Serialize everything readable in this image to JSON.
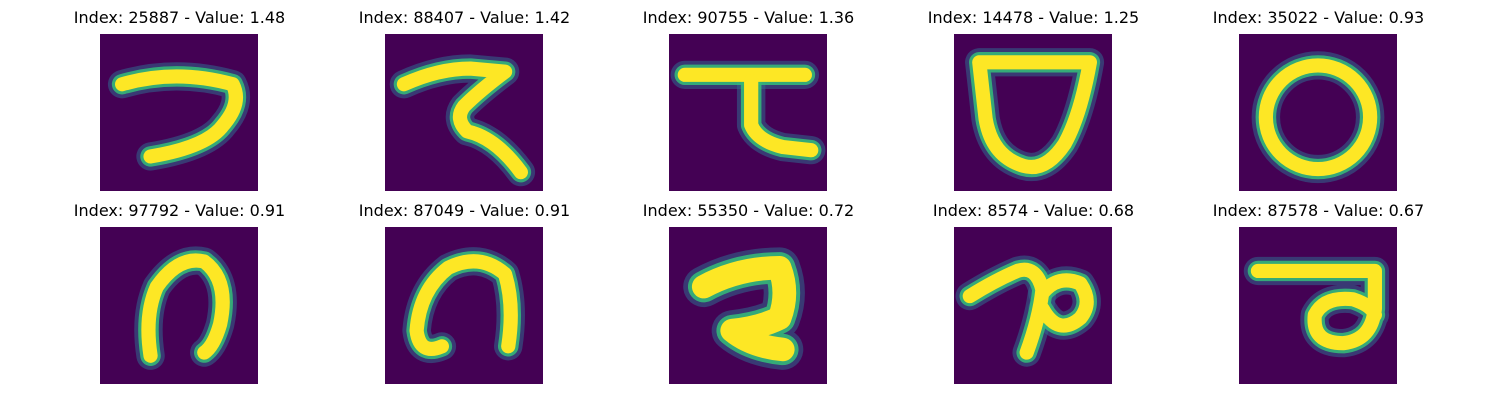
{
  "colormap": {
    "background": "#440154",
    "low": "#31688e",
    "mid": "#35b779",
    "high": "#fde725"
  },
  "panels": [
    {
      "title": "Index: 25887 - Value: 1.48",
      "index": 25887,
      "value": 1.48,
      "glyph": "hook-seven-shape"
    },
    {
      "title": "Index: 88407 - Value: 1.42",
      "index": 88407,
      "value": 1.42,
      "glyph": "zigzag-shape"
    },
    {
      "title": "Index: 90755 - Value: 1.36",
      "index": 90755,
      "value": 1.36,
      "glyph": "bar-with-hook-shape"
    },
    {
      "title": "Index: 14478 - Value: 1.25",
      "index": 14478,
      "value": 1.25,
      "glyph": "shield-loop-shape"
    },
    {
      "title": "Index: 35022 - Value: 0.93",
      "index": 35022,
      "value": 0.93,
      "glyph": "ring-shape"
    },
    {
      "title": "Index: 97792 - Value: 0.91",
      "index": 97792,
      "value": 0.91,
      "glyph": "arch-shape"
    },
    {
      "title": "Index: 87049 - Value: 0.91",
      "index": 87049,
      "value": 0.91,
      "glyph": "arch-shape"
    },
    {
      "title": "Index: 55350 - Value: 0.72",
      "index": 55350,
      "value": 0.72,
      "glyph": "thick-hook-shape"
    },
    {
      "title": "Index: 8574 - Value: 0.68",
      "index": 8574,
      "value": 0.68,
      "glyph": "curl-loop-shape"
    },
    {
      "title": "Index: 87578 - Value: 0.67",
      "index": 87578,
      "value": 0.67,
      "glyph": "bar-with-loop-shape"
    }
  ]
}
